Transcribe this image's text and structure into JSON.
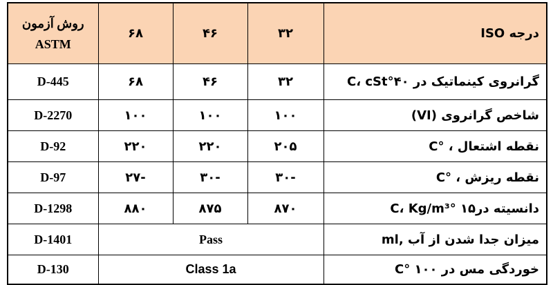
{
  "header": {
    "property": "درجه ISO",
    "grades": [
      "۳۲",
      "۴۶",
      "۶۸"
    ],
    "method_line1": "روش آزمون",
    "method_line2": "ASTM"
  },
  "rows": [
    {
      "property": "گرانروی کینماتیک در ۴۰°C، cSt",
      "values": [
        "۳۲",
        "۴۶",
        "۶۸"
      ],
      "method": "D-445"
    },
    {
      "property": "شاخص گرانروی (VI)",
      "values": [
        "۱۰۰",
        "۱۰۰",
        "۱۰۰"
      ],
      "method": "D-2270"
    },
    {
      "property": "نقطه اشتعال ، °C",
      "values": [
        "۲۰۵",
        "۲۲۰",
        "۲۲۰"
      ],
      "method": "D-92"
    },
    {
      "property": "نقطه ریزش ، °C",
      "values": [
        "-۳۰",
        "-۳۰",
        "-۲۷"
      ],
      "method": "D-97"
    },
    {
      "property": "دانسیته در۱۵ °C، Kg/m³",
      "values": [
        "۸۷۰",
        "۸۷۵",
        "۸۸۰"
      ],
      "method": "D-1298"
    },
    {
      "property": "میزان جدا شدن از آب ,ml",
      "merged": "Pass",
      "method": "D-1401"
    },
    {
      "property": "خوردگی مس در ۱۰۰ °C",
      "merged": "Class 1a",
      "method": "D-130"
    }
  ],
  "colors": {
    "header_bg": "#fbd4b4",
    "border": "#000000",
    "text": "#000000"
  }
}
